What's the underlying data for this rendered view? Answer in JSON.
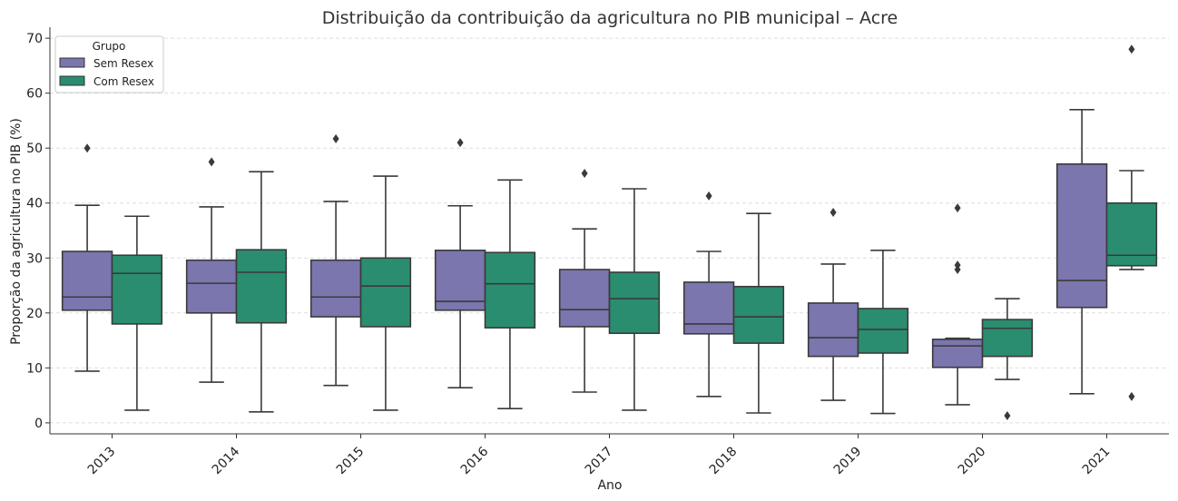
{
  "chart_data": {
    "type": "boxplot",
    "title": "Distribuição da contribuição da agricultura no PIB municipal – Acre",
    "xlabel": "Ano",
    "ylabel": "Proporção da agricultura no PIB (%)",
    "ylim": [
      -2,
      72
    ],
    "yticks": [
      0,
      10,
      20,
      30,
      40,
      50,
      60,
      70
    ],
    "grid": "horizontal dashed",
    "legend": {
      "title": "Grupo",
      "placement": "top-left"
    },
    "categories": [
      "2013",
      "2014",
      "2015",
      "2016",
      "2017",
      "2018",
      "2019",
      "2020",
      "2021"
    ],
    "series": [
      {
        "name": "Sem Resex",
        "color": "#7b76ae",
        "boxes": [
          {
            "low": 9.4,
            "q1": 20.5,
            "median": 22.9,
            "q3": 31.2,
            "high": 39.6,
            "outliers": [
              50.0
            ]
          },
          {
            "low": 7.4,
            "q1": 20.0,
            "median": 25.4,
            "q3": 29.6,
            "high": 39.3,
            "outliers": [
              47.5
            ]
          },
          {
            "low": 6.8,
            "q1": 19.3,
            "median": 22.9,
            "q3": 29.6,
            "high": 40.3,
            "outliers": [
              51.7
            ]
          },
          {
            "low": 6.4,
            "q1": 20.5,
            "median": 22.1,
            "q3": 31.4,
            "high": 39.5,
            "outliers": [
              51.0
            ]
          },
          {
            "low": 5.6,
            "q1": 17.5,
            "median": 20.6,
            "q3": 27.9,
            "high": 35.3,
            "outliers": [
              45.4
            ]
          },
          {
            "low": 4.8,
            "q1": 16.2,
            "median": 18.0,
            "q3": 25.6,
            "high": 31.2,
            "outliers": [
              41.3
            ]
          },
          {
            "low": 4.1,
            "q1": 12.1,
            "median": 15.5,
            "q3": 21.8,
            "high": 28.9,
            "outliers": [
              38.3
            ]
          },
          {
            "low": 3.3,
            "q1": 10.1,
            "median": 14.0,
            "q3": 15.2,
            "high": 15.4,
            "outliers": [
              39.1,
              28.7,
              27.9
            ]
          },
          {
            "low": 5.3,
            "q1": 21.0,
            "median": 25.9,
            "q3": 47.1,
            "high": 57.0,
            "outliers": []
          }
        ]
      },
      {
        "name": "Com Resex",
        "color": "#2a8d6f",
        "boxes": [
          {
            "low": 2.3,
            "q1": 18.0,
            "median": 27.2,
            "q3": 30.5,
            "high": 37.6,
            "outliers": []
          },
          {
            "low": 2.0,
            "q1": 18.2,
            "median": 27.4,
            "q3": 31.5,
            "high": 45.7,
            "outliers": []
          },
          {
            "low": 2.3,
            "q1": 17.5,
            "median": 24.9,
            "q3": 30.0,
            "high": 44.9,
            "outliers": []
          },
          {
            "low": 2.6,
            "q1": 17.3,
            "median": 25.3,
            "q3": 31.0,
            "high": 44.2,
            "outliers": []
          },
          {
            "low": 2.3,
            "q1": 16.3,
            "median": 22.6,
            "q3": 27.4,
            "high": 42.6,
            "outliers": []
          },
          {
            "low": 1.8,
            "q1": 14.5,
            "median": 19.3,
            "q3": 24.8,
            "high": 38.1,
            "outliers": []
          },
          {
            "low": 1.7,
            "q1": 12.7,
            "median": 17.0,
            "q3": 20.8,
            "high": 31.4,
            "outliers": []
          },
          {
            "low": 7.9,
            "q1": 12.1,
            "median": 17.2,
            "q3": 18.8,
            "high": 22.6,
            "outliers": [
              1.3
            ]
          },
          {
            "low": 27.9,
            "q1": 28.6,
            "median": 30.5,
            "q3": 40.0,
            "high": 45.9,
            "outliers": [
              68.0,
              4.8
            ]
          }
        ]
      }
    ]
  }
}
